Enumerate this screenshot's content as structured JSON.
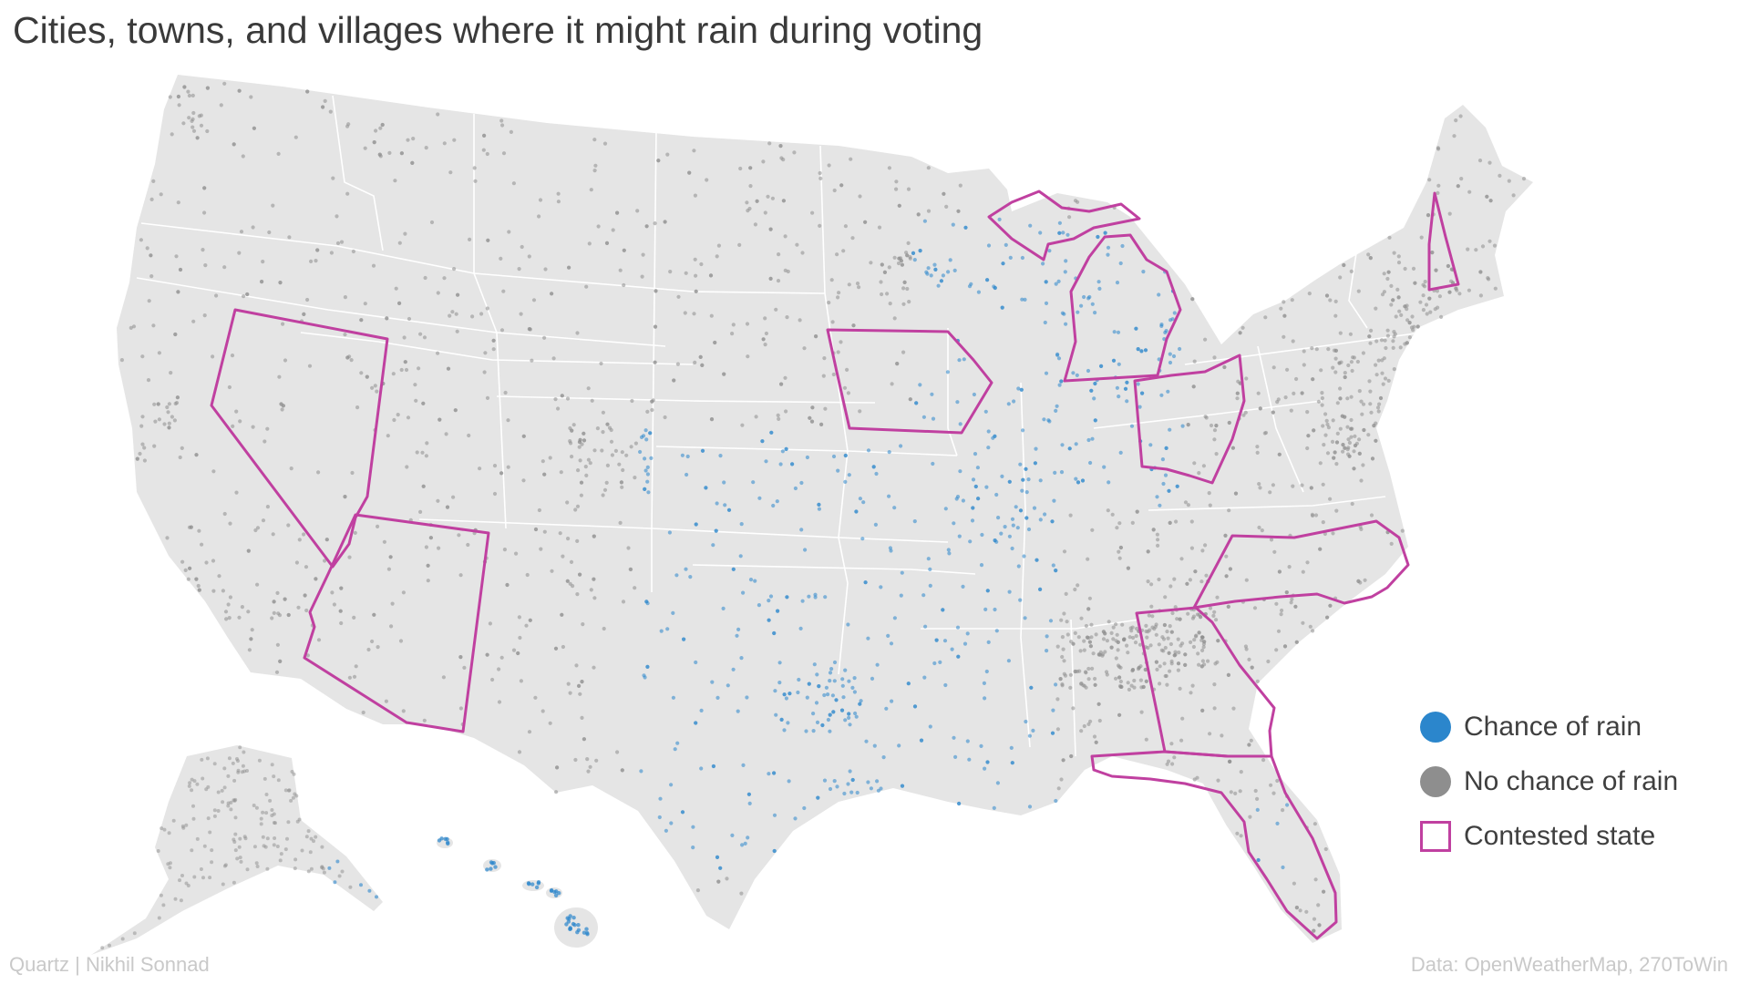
{
  "title": "Cities, towns, and villages where it might rain during voting",
  "legend": {
    "items": [
      {
        "label": "Chance of rain",
        "kind": "filled-circle",
        "color": "#2b86cc"
      },
      {
        "label": "No chance of rain",
        "kind": "filled-circle",
        "color": "#8e8e8e"
      },
      {
        "label": "Contested state",
        "kind": "outline-square",
        "color": "#c040a0"
      }
    ]
  },
  "colors": {
    "land": "#e5e5e5",
    "state_border": "#ffffff",
    "rain_dot": "#2b86cc",
    "no_rain_dot": "#8e8e8e",
    "contested_outline": "#c040a0"
  },
  "contested_states": [
    "Nevada",
    "Arizona",
    "Iowa",
    "Michigan",
    "Ohio",
    "New Hampshire",
    "North Carolina",
    "Georgia",
    "Florida"
  ],
  "footer": {
    "credit": "Quartz | Nikhil Sonnad",
    "source": "Data: OpenWeatherMap, 270ToWin"
  }
}
